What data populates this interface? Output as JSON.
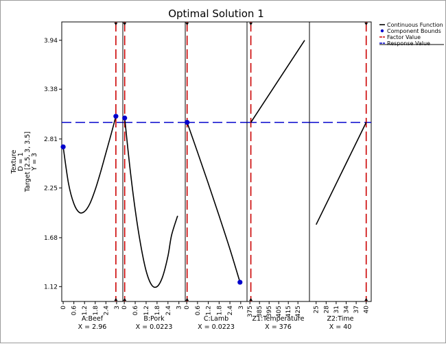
{
  "chart_data": {
    "type": "line",
    "title": "Optimal Solution 1",
    "ylabel_lines": [
      "Texture",
      "D = 1",
      "Target [2.5, 3, 3.5]",
      "Y = 3"
    ],
    "response_value": 3,
    "ylim": [
      0.95,
      4.15
    ],
    "y_ticks": [
      "1.12",
      "1.68",
      "2.25",
      "2.81",
      "3.38",
      "3.94"
    ],
    "legend": {
      "position": "top-right",
      "items": [
        {
          "label": "Continuous Function",
          "color": "#000000",
          "style": "solid"
        },
        {
          "label": "Component Bounds",
          "color": "#0000cc",
          "style": "dot"
        },
        {
          "label": "Factor Value",
          "color": "#cc0000",
          "style": "dashed"
        },
        {
          "label": "Response Value",
          "color": "#0000cc",
          "style": "dashed"
        }
      ]
    },
    "panels": [
      {
        "name": "A:Beef",
        "value_label": "X = 2.96",
        "xlim": [
          -0.08,
          3.35
        ],
        "x_ticks": [
          "0",
          "0.6",
          "1.2",
          "1.8",
          "2.4",
          "3"
        ],
        "x_tick_values": [
          0,
          0.6,
          1.2,
          1.8,
          2.4,
          3
        ],
        "factor_value": 2.96,
        "curve": [
          [
            0,
            2.72
          ],
          [
            0.3,
            2.3
          ],
          [
            0.6,
            2.07
          ],
          [
            0.9,
            1.97
          ],
          [
            1.2,
            1.98
          ],
          [
            1.5,
            2.07
          ],
          [
            1.8,
            2.23
          ],
          [
            2.1,
            2.43
          ],
          [
            2.4,
            2.65
          ],
          [
            2.7,
            2.87
          ],
          [
            2.96,
            3.07
          ]
        ],
        "bounds": [
          [
            0,
            2.72
          ],
          [
            2.96,
            3.07
          ]
        ]
      },
      {
        "name": "B:Pork",
        "value_label": "X = 0.0223",
        "xlim": [
          -0.08,
          3.35
        ],
        "x_ticks": [
          "0",
          "0.6",
          "1.2",
          "1.8",
          "2.4",
          "3"
        ],
        "x_tick_values": [
          0,
          0.6,
          1.2,
          1.8,
          2.4,
          3
        ],
        "factor_value": 0.0223,
        "curve": [
          [
            0.0223,
            3.05
          ],
          [
            0.3,
            2.5
          ],
          [
            0.6,
            2.0
          ],
          [
            0.9,
            1.6
          ],
          [
            1.2,
            1.3
          ],
          [
            1.5,
            1.14
          ],
          [
            1.8,
            1.12
          ],
          [
            2.1,
            1.23
          ],
          [
            2.4,
            1.47
          ],
          [
            2.6,
            1.71
          ],
          [
            2.93,
            1.93
          ]
        ],
        "bounds": [
          [
            0.0223,
            3.05
          ]
        ]
      },
      {
        "name": "C:Lamb",
        "value_label": "X = 0.0223",
        "xlim": [
          -0.08,
          3.35
        ],
        "x_ticks": [
          "0",
          "0.6",
          "1.2",
          "1.8",
          "2.4",
          "3"
        ],
        "x_tick_values": [
          0,
          0.6,
          1.2,
          1.8,
          2.4,
          3
        ],
        "factor_value": 0.0223,
        "curve": [
          [
            0.0223,
            3.0
          ],
          [
            0.6,
            2.66
          ],
          [
            1.2,
            2.3
          ],
          [
            1.8,
            1.93
          ],
          [
            2.4,
            1.55
          ],
          [
            2.96,
            1.17
          ]
        ],
        "bounds": [
          [
            0.0223,
            3.0
          ],
          [
            2.96,
            1.17
          ]
        ]
      },
      {
        "name": "Z1:Temperature",
        "value_label": "X = 376",
        "xlim": [
          372,
          437
        ],
        "x_ticks": [
          "375",
          "385",
          "395",
          "405",
          "415",
          "425"
        ],
        "x_tick_values": [
          375,
          385,
          395,
          405,
          415,
          425
        ],
        "factor_value": 376,
        "curve": [
          [
            376,
            3.0
          ],
          [
            432,
            3.94
          ]
        ],
        "bounds": []
      },
      {
        "name": "Z2:Time",
        "value_label": "X = 40",
        "xlim": [
          23,
          41.5
        ],
        "x_ticks": [
          "25",
          "28",
          "31",
          "34",
          "37",
          "40"
        ],
        "x_tick_values": [
          25,
          28,
          31,
          34,
          37,
          40
        ],
        "factor_value": 40,
        "curve": [
          [
            25,
            1.83
          ],
          [
            40,
            3.0
          ]
        ],
        "bounds": []
      }
    ]
  }
}
